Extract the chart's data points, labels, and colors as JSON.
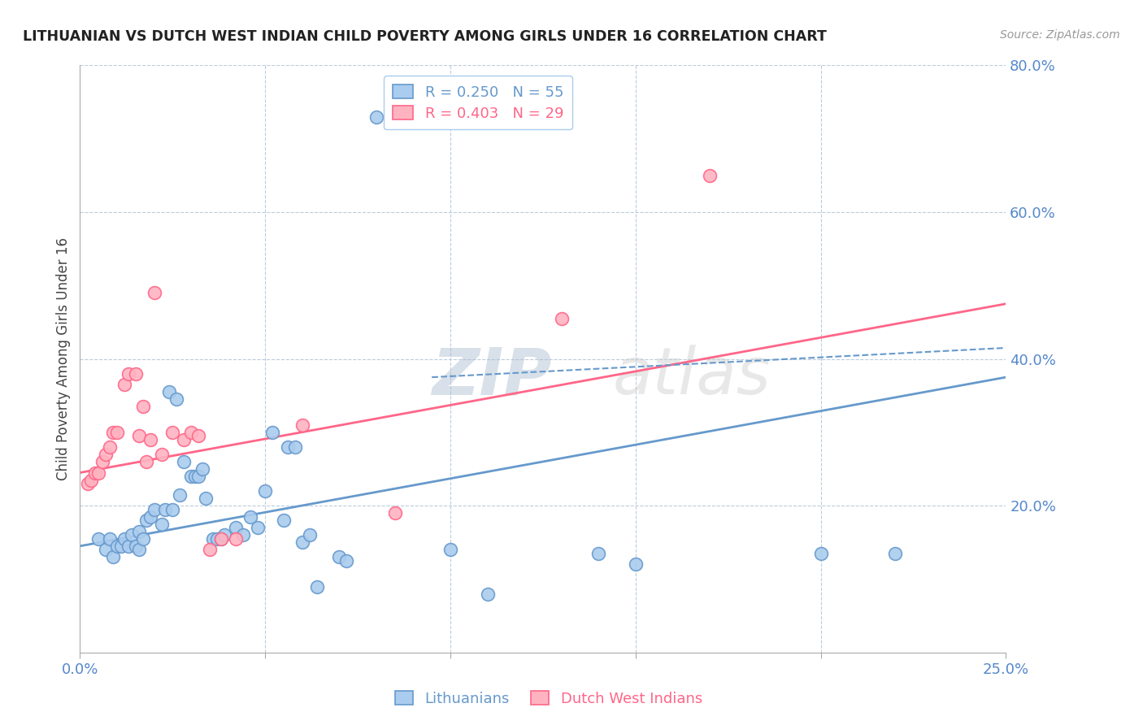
{
  "title": "LITHUANIAN VS DUTCH WEST INDIAN CHILD POVERTY AMONG GIRLS UNDER 16 CORRELATION CHART",
  "source": "Source: ZipAtlas.com",
  "ylabel": "Child Poverty Among Girls Under 16",
  "xlim": [
    0.0,
    0.25
  ],
  "ylim": [
    0.0,
    0.8
  ],
  "blue_color": "#6699CC",
  "blue_face": "#AACCEE",
  "pink_color": "#FF6688",
  "pink_face": "#FFB3C1",
  "background_color": "#FFFFFF",
  "watermark_zip": "ZIP",
  "watermark_atlas": "atlas",
  "grid_color": "#BBCCDD",
  "legend_r1": "R = 0.250   N = 55",
  "legend_r2": "R = 0.403   N = 29",
  "lithuanian_data": [
    [
      0.005,
      0.155
    ],
    [
      0.007,
      0.14
    ],
    [
      0.008,
      0.155
    ],
    [
      0.009,
      0.13
    ],
    [
      0.01,
      0.145
    ],
    [
      0.011,
      0.145
    ],
    [
      0.012,
      0.155
    ],
    [
      0.013,
      0.145
    ],
    [
      0.014,
      0.16
    ],
    [
      0.015,
      0.145
    ],
    [
      0.016,
      0.14
    ],
    [
      0.016,
      0.165
    ],
    [
      0.017,
      0.155
    ],
    [
      0.018,
      0.18
    ],
    [
      0.019,
      0.185
    ],
    [
      0.02,
      0.195
    ],
    [
      0.022,
      0.175
    ],
    [
      0.023,
      0.195
    ],
    [
      0.024,
      0.355
    ],
    [
      0.025,
      0.195
    ],
    [
      0.026,
      0.345
    ],
    [
      0.027,
      0.215
    ],
    [
      0.028,
      0.26
    ],
    [
      0.03,
      0.24
    ],
    [
      0.031,
      0.24
    ],
    [
      0.032,
      0.24
    ],
    [
      0.033,
      0.25
    ],
    [
      0.034,
      0.21
    ],
    [
      0.036,
      0.155
    ],
    [
      0.037,
      0.155
    ],
    [
      0.038,
      0.155
    ],
    [
      0.039,
      0.16
    ],
    [
      0.042,
      0.17
    ],
    [
      0.044,
      0.16
    ],
    [
      0.046,
      0.185
    ],
    [
      0.048,
      0.17
    ],
    [
      0.05,
      0.22
    ],
    [
      0.052,
      0.3
    ],
    [
      0.055,
      0.18
    ],
    [
      0.056,
      0.28
    ],
    [
      0.058,
      0.28
    ],
    [
      0.06,
      0.15
    ],
    [
      0.062,
      0.16
    ],
    [
      0.064,
      0.09
    ],
    [
      0.07,
      0.13
    ],
    [
      0.072,
      0.125
    ],
    [
      0.08,
      0.73
    ],
    [
      0.085,
      0.735
    ],
    [
      0.086,
      0.735
    ],
    [
      0.1,
      0.14
    ],
    [
      0.11,
      0.08
    ],
    [
      0.14,
      0.135
    ],
    [
      0.15,
      0.12
    ],
    [
      0.2,
      0.135
    ],
    [
      0.22,
      0.135
    ]
  ],
  "dutch_data": [
    [
      0.002,
      0.23
    ],
    [
      0.003,
      0.235
    ],
    [
      0.004,
      0.245
    ],
    [
      0.005,
      0.245
    ],
    [
      0.006,
      0.26
    ],
    [
      0.007,
      0.27
    ],
    [
      0.008,
      0.28
    ],
    [
      0.009,
      0.3
    ],
    [
      0.01,
      0.3
    ],
    [
      0.012,
      0.365
    ],
    [
      0.013,
      0.38
    ],
    [
      0.015,
      0.38
    ],
    [
      0.016,
      0.295
    ],
    [
      0.017,
      0.335
    ],
    [
      0.018,
      0.26
    ],
    [
      0.019,
      0.29
    ],
    [
      0.02,
      0.49
    ],
    [
      0.022,
      0.27
    ],
    [
      0.025,
      0.3
    ],
    [
      0.028,
      0.29
    ],
    [
      0.03,
      0.3
    ],
    [
      0.032,
      0.295
    ],
    [
      0.035,
      0.14
    ],
    [
      0.038,
      0.155
    ],
    [
      0.042,
      0.155
    ],
    [
      0.06,
      0.31
    ],
    [
      0.085,
      0.19
    ],
    [
      0.13,
      0.455
    ],
    [
      0.17,
      0.65
    ]
  ],
  "blue_reg": [
    0.0,
    0.145,
    0.25,
    0.375
  ],
  "pink_reg": [
    0.0,
    0.245,
    0.25,
    0.475
  ],
  "blue_dash": [
    0.095,
    0.375,
    0.25,
    0.415
  ],
  "ytick_positions": [
    0.2,
    0.4,
    0.6,
    0.8
  ],
  "ytick_labels": [
    "20.0%",
    "40.0%",
    "60.0%",
    "80.0%"
  ],
  "xtick_positions": [
    0.0,
    0.25
  ],
  "xtick_labels": [
    "0.0%",
    "25.0%"
  ]
}
